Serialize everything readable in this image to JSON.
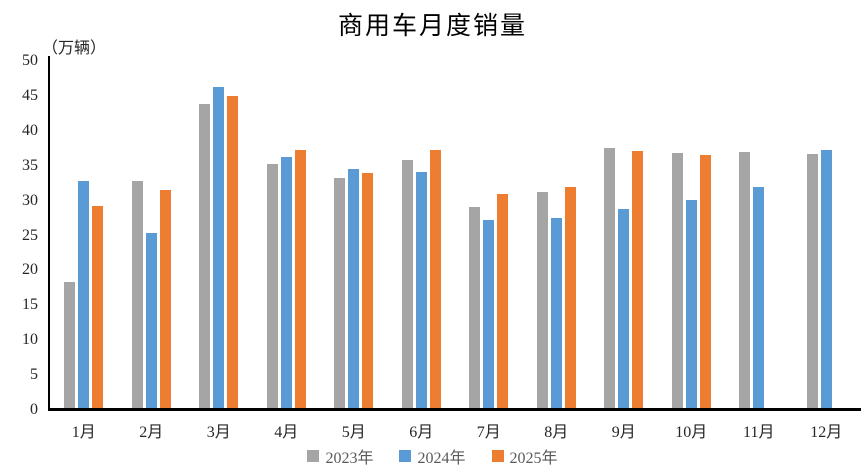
{
  "chart_data": {
    "type": "bar",
    "title": "商用车月度销量",
    "ylabel": "（万辆）",
    "xlabel": "",
    "categories": [
      "1月",
      "2月",
      "3月",
      "4月",
      "5月",
      "6月",
      "7月",
      "8月",
      "9月",
      "10月",
      "11月",
      "12月"
    ],
    "series": [
      {
        "name": "2023年",
        "color": "#A5A5A5",
        "values": [
          18.1,
          32.5,
          43.5,
          35.0,
          33.0,
          35.6,
          28.8,
          31.0,
          37.2,
          36.6,
          36.7,
          36.4
        ]
      },
      {
        "name": "2024年",
        "color": "#5B9BD5",
        "values": [
          32.5,
          25.1,
          46.0,
          35.9,
          34.2,
          33.8,
          26.9,
          27.2,
          28.5,
          29.8,
          31.6,
          37.0
        ]
      },
      {
        "name": "2025年",
        "color": "#ED7D31",
        "values": [
          29.0,
          31.3,
          44.7,
          37.0,
          33.6,
          37.0,
          30.6,
          31.7,
          36.8,
          36.2,
          null,
          null
        ]
      }
    ],
    "ylim": [
      0,
      50
    ],
    "yticks": [
      0,
      5,
      10,
      15,
      20,
      25,
      30,
      35,
      40,
      45,
      50
    ],
    "grid": false,
    "legend_position": "bottom"
  }
}
